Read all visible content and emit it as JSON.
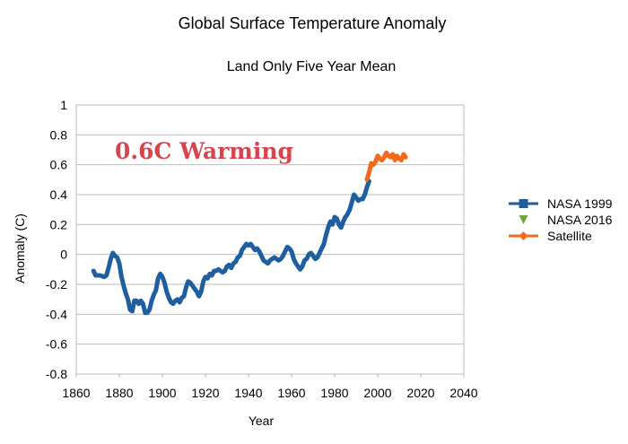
{
  "chart_data": {
    "type": "line",
    "title": "Global Surface Temperature Anomaly",
    "subtitle": "Land Only  Five Year Mean",
    "xlabel": "Year",
    "ylabel": "Anomaly (C)",
    "xlim": [
      1860,
      2040
    ],
    "ylim": [
      -0.8,
      1
    ],
    "xticks": [
      1860,
      1880,
      1900,
      1920,
      1940,
      1960,
      1980,
      2000,
      2020,
      2040
    ],
    "yticks": [
      -0.8,
      -0.6,
      -0.4,
      -0.2,
      0,
      0.2,
      0.4,
      0.6,
      0.8,
      1
    ],
    "ytick_labels": [
      "-0.8",
      "-0.6",
      "-0.4",
      "-0.2",
      "0",
      "0.2",
      "0.4",
      "0.6",
      "0.8",
      "1"
    ],
    "grid": "horizontal",
    "legend_position": "right",
    "annotation": {
      "text": "0.6C Warming",
      "color": "#d9434b"
    },
    "series": [
      {
        "name": "NASA 1999",
        "color": "#1f5fa0",
        "marker": "square",
        "points": [
          [
            1868,
            -0.11
          ],
          [
            1869,
            -0.14
          ],
          [
            1871,
            -0.14
          ],
          [
            1873,
            -0.15
          ],
          [
            1874,
            -0.14
          ],
          [
            1875,
            -0.09
          ],
          [
            1876,
            -0.03
          ],
          [
            1877,
            0.01
          ],
          [
            1878,
            -0.01
          ],
          [
            1879,
            -0.02
          ],
          [
            1880,
            -0.06
          ],
          [
            1881,
            -0.15
          ],
          [
            1882,
            -0.21
          ],
          [
            1883,
            -0.26
          ],
          [
            1884,
            -0.3
          ],
          [
            1885,
            -0.37
          ],
          [
            1886,
            -0.38
          ],
          [
            1887,
            -0.31
          ],
          [
            1888,
            -0.31
          ],
          [
            1889,
            -0.33
          ],
          [
            1890,
            -0.31
          ],
          [
            1891,
            -0.33
          ],
          [
            1892,
            -0.39
          ],
          [
            1893,
            -0.39
          ],
          [
            1894,
            -0.37
          ],
          [
            1895,
            -0.31
          ],
          [
            1896,
            -0.27
          ],
          [
            1897,
            -0.24
          ],
          [
            1898,
            -0.16
          ],
          [
            1899,
            -0.13
          ],
          [
            1900,
            -0.15
          ],
          [
            1901,
            -0.19
          ],
          [
            1902,
            -0.25
          ],
          [
            1903,
            -0.29
          ],
          [
            1904,
            -0.32
          ],
          [
            1905,
            -0.33
          ],
          [
            1906,
            -0.31
          ],
          [
            1907,
            -0.3
          ],
          [
            1908,
            -0.32
          ],
          [
            1909,
            -0.29
          ],
          [
            1910,
            -0.28
          ],
          [
            1911,
            -0.22
          ],
          [
            1912,
            -0.18
          ],
          [
            1913,
            -0.19
          ],
          [
            1914,
            -0.21
          ],
          [
            1915,
            -0.23
          ],
          [
            1916,
            -0.25
          ],
          [
            1917,
            -0.28
          ],
          [
            1918,
            -0.25
          ],
          [
            1919,
            -0.18
          ],
          [
            1920,
            -0.15
          ],
          [
            1921,
            -0.16
          ],
          [
            1922,
            -0.13
          ],
          [
            1923,
            -0.14
          ],
          [
            1924,
            -0.11
          ],
          [
            1925,
            -0.11
          ],
          [
            1926,
            -0.1
          ],
          [
            1927,
            -0.11
          ],
          [
            1928,
            -0.12
          ],
          [
            1929,
            -0.11
          ],
          [
            1930,
            -0.08
          ],
          [
            1931,
            -0.07
          ],
          [
            1932,
            -0.09
          ],
          [
            1933,
            -0.06
          ],
          [
            1934,
            -0.05
          ],
          [
            1935,
            -0.02
          ],
          [
            1936,
            -0.01
          ],
          [
            1937,
            0.03
          ],
          [
            1938,
            0.05
          ],
          [
            1939,
            0.07
          ],
          [
            1940,
            0.06
          ],
          [
            1941,
            0.07
          ],
          [
            1942,
            0.05
          ],
          [
            1943,
            0.03
          ],
          [
            1944,
            0.04
          ],
          [
            1945,
            0.02
          ],
          [
            1946,
            -0.01
          ],
          [
            1947,
            -0.04
          ],
          [
            1948,
            -0.05
          ],
          [
            1949,
            -0.06
          ],
          [
            1950,
            -0.04
          ],
          [
            1951,
            -0.03
          ],
          [
            1952,
            -0.02
          ],
          [
            1953,
            -0.03
          ],
          [
            1954,
            -0.04
          ],
          [
            1955,
            -0.03
          ],
          [
            1956,
            -0.01
          ],
          [
            1957,
            0.02
          ],
          [
            1958,
            0.05
          ],
          [
            1959,
            0.04
          ],
          [
            1960,
            0.02
          ],
          [
            1961,
            -0.03
          ],
          [
            1962,
            -0.06
          ],
          [
            1963,
            -0.08
          ],
          [
            1964,
            -0.1
          ],
          [
            1965,
            -0.08
          ],
          [
            1966,
            -0.04
          ],
          [
            1967,
            -0.03
          ],
          [
            1968,
            0.0
          ],
          [
            1969,
            0.01
          ],
          [
            1970,
            -0.01
          ],
          [
            1971,
            -0.03
          ],
          [
            1972,
            -0.02
          ],
          [
            1973,
            0.01
          ],
          [
            1974,
            0.04
          ],
          [
            1975,
            0.07
          ],
          [
            1976,
            0.13
          ],
          [
            1977,
            0.18
          ],
          [
            1978,
            0.22
          ],
          [
            1979,
            0.2
          ],
          [
            1980,
            0.25
          ],
          [
            1981,
            0.24
          ],
          [
            1982,
            0.2
          ],
          [
            1983,
            0.18
          ],
          [
            1984,
            0.22
          ],
          [
            1985,
            0.25
          ],
          [
            1986,
            0.27
          ],
          [
            1987,
            0.3
          ],
          [
            1988,
            0.35
          ],
          [
            1989,
            0.4
          ],
          [
            1990,
            0.38
          ],
          [
            1991,
            0.36
          ],
          [
            1992,
            0.37
          ],
          [
            1993,
            0.37
          ],
          [
            1994,
            0.4
          ],
          [
            1995,
            0.45
          ],
          [
            1996,
            0.49
          ]
        ]
      },
      {
        "name": "NASA 2016",
        "color": "#6ea83a",
        "marker": "triangle-down",
        "points": []
      },
      {
        "name": "Satellite",
        "color": "#f26b1d",
        "marker": "diamond",
        "points": [
          [
            1995,
            0.5
          ],
          [
            1996,
            0.55
          ],
          [
            1997,
            0.61
          ],
          [
            1998,
            0.6
          ],
          [
            1999,
            0.62
          ],
          [
            2000,
            0.66
          ],
          [
            2001,
            0.64
          ],
          [
            2002,
            0.63
          ],
          [
            2003,
            0.65
          ],
          [
            2004,
            0.68
          ],
          [
            2005,
            0.66
          ],
          [
            2006,
            0.65
          ],
          [
            2007,
            0.67
          ],
          [
            2008,
            0.63
          ],
          [
            2009,
            0.66
          ],
          [
            2010,
            0.64
          ],
          [
            2011,
            0.63
          ],
          [
            2012,
            0.67
          ],
          [
            2013,
            0.65
          ]
        ]
      }
    ]
  }
}
